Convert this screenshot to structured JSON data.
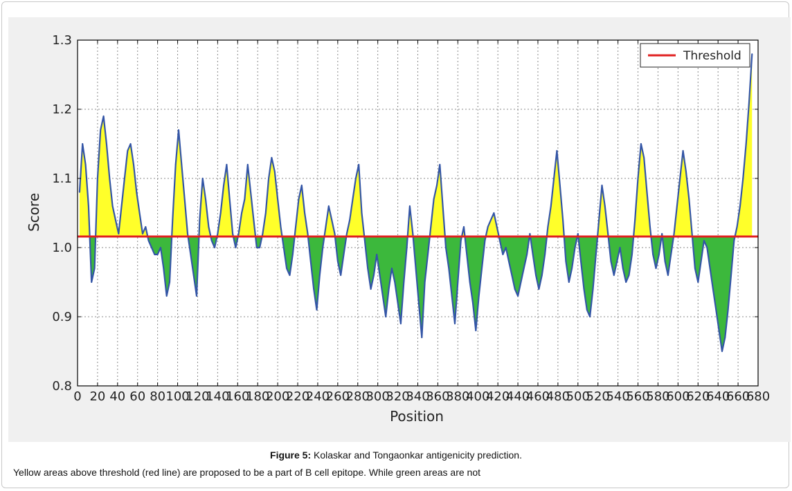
{
  "figure": {
    "label": "Figure 5:",
    "title": "Kolaskar and Tongaonkar antigenicity prediction.",
    "note": "Yellow areas above threshold (red line) are proposed to be a part of B cell epitope. While green areas are not"
  },
  "colors": {
    "above": "#ffff2a",
    "below": "#3cb83c",
    "line": "#3355a6",
    "threshold": "#e02020",
    "grid": "#888888",
    "plot_bg": "#ffffff",
    "panel_bg": "#f0f0f0"
  },
  "chart_data": {
    "type": "area",
    "title": "",
    "xlabel": "Position",
    "ylabel": "Score",
    "xlim": [
      0,
      680
    ],
    "ylim": [
      0.8,
      1.3
    ],
    "xticks": [
      0,
      20,
      40,
      60,
      80,
      100,
      120,
      140,
      160,
      180,
      200,
      220,
      240,
      260,
      280,
      300,
      320,
      340,
      360,
      380,
      400,
      420,
      440,
      460,
      480,
      500,
      520,
      540,
      560,
      580,
      600,
      620,
      640,
      660,
      680
    ],
    "yticks": [
      0.8,
      0.9,
      1.0,
      1.1,
      1.2,
      1.3
    ],
    "ytick_labels": [
      "0.8",
      "0.9",
      "1.0",
      "1.1",
      "1.2",
      "1.3"
    ],
    "grid": true,
    "legend": {
      "position": "top-right",
      "entries": [
        "Threshold"
      ]
    },
    "threshold": {
      "name": "Threshold",
      "value": 1.016
    },
    "series": [
      {
        "x": [
          2,
          5,
          8,
          11,
          14,
          17,
          20,
          23,
          26,
          29,
          32,
          35,
          38,
          41,
          44,
          47,
          50,
          53,
          56,
          59,
          62,
          65,
          68,
          71,
          74,
          77,
          80,
          83,
          86,
          89,
          92,
          95,
          98,
          101,
          104,
          107,
          110,
          113,
          116,
          119,
          122,
          125,
          128,
          131,
          134,
          137,
          140,
          143,
          146,
          149,
          152,
          155,
          158,
          161,
          164,
          167,
          170,
          173,
          176,
          179,
          182,
          185,
          188,
          191,
          194,
          197,
          200,
          203,
          206,
          209,
          212,
          215,
          218,
          221,
          224,
          227,
          230,
          233,
          236,
          239,
          242,
          245,
          248,
          251,
          254,
          257,
          260,
          263,
          266,
          269,
          272,
          275,
          278,
          281,
          284,
          287,
          290,
          293,
          296,
          299,
          302,
          305,
          308,
          311,
          314,
          317,
          320,
          323,
          326,
          329,
          332,
          335,
          338,
          341,
          344,
          347,
          350,
          353,
          356,
          359,
          362,
          365,
          368,
          371,
          374,
          377,
          380,
          383,
          386,
          389,
          392,
          395,
          398,
          401,
          404,
          407,
          410,
          413,
          416,
          419,
          422,
          425,
          428,
          431,
          434,
          437,
          440,
          443,
          446,
          449,
          452,
          455,
          458,
          461,
          464,
          467,
          470,
          473,
          476,
          479,
          482,
          485,
          488,
          491,
          494,
          497,
          500,
          503,
          506,
          509,
          512,
          515,
          518,
          521,
          524,
          527,
          530,
          533,
          536,
          539,
          542,
          545,
          548,
          551,
          554,
          557,
          560,
          563,
          566,
          569,
          572,
          575,
          578,
          581,
          584,
          587,
          590,
          593,
          596,
          599,
          602,
          605,
          608,
          611,
          614,
          617,
          620,
          623,
          626,
          629,
          632,
          635,
          638,
          641,
          644,
          647,
          650,
          653,
          656,
          659,
          662,
          665,
          668,
          671,
          674
        ],
        "y": [
          1.08,
          1.15,
          1.12,
          1.06,
          0.95,
          0.97,
          1.1,
          1.17,
          1.19,
          1.15,
          1.1,
          1.06,
          1.04,
          1.02,
          1.06,
          1.1,
          1.14,
          1.15,
          1.12,
          1.08,
          1.05,
          1.02,
          1.03,
          1.01,
          1.0,
          0.99,
          0.99,
          1.0,
          0.97,
          0.93,
          0.95,
          1.04,
          1.12,
          1.17,
          1.12,
          1.07,
          1.02,
          0.99,
          0.96,
          0.93,
          1.04,
          1.1,
          1.07,
          1.03,
          1.01,
          1.0,
          1.02,
          1.05,
          1.09,
          1.12,
          1.07,
          1.02,
          1.0,
          1.02,
          1.05,
          1.07,
          1.12,
          1.08,
          1.04,
          1.0,
          1.0,
          1.02,
          1.05,
          1.1,
          1.13,
          1.11,
          1.07,
          1.03,
          1.0,
          0.97,
          0.96,
          0.99,
          1.03,
          1.07,
          1.09,
          1.05,
          1.02,
          0.98,
          0.94,
          0.91,
          0.96,
          1.0,
          1.03,
          1.06,
          1.04,
          1.02,
          0.98,
          0.96,
          0.99,
          1.02,
          1.04,
          1.07,
          1.1,
          1.12,
          1.05,
          1.01,
          0.97,
          0.94,
          0.96,
          0.99,
          0.96,
          0.93,
          0.9,
          0.94,
          0.97,
          0.95,
          0.92,
          0.89,
          0.95,
          1.0,
          1.06,
          1.02,
          0.97,
          0.92,
          0.87,
          0.95,
          0.99,
          1.03,
          1.07,
          1.09,
          1.12,
          1.06,
          1.0,
          0.97,
          0.93,
          0.89,
          0.95,
          1.01,
          1.03,
          0.99,
          0.95,
          0.92,
          0.88,
          0.93,
          0.97,
          1.01,
          1.03,
          1.04,
          1.05,
          1.03,
          1.01,
          0.99,
          1.0,
          0.98,
          0.96,
          0.94,
          0.93,
          0.95,
          0.97,
          0.99,
          1.02,
          0.99,
          0.96,
          0.94,
          0.96,
          0.99,
          1.03,
          1.06,
          1.1,
          1.14,
          1.09,
          1.04,
          0.98,
          0.95,
          0.97,
          1.0,
          1.02,
          0.98,
          0.94,
          0.91,
          0.9,
          0.94,
          0.99,
          1.04,
          1.09,
          1.06,
          1.02,
          0.98,
          0.96,
          0.98,
          1.0,
          0.97,
          0.95,
          0.96,
          0.99,
          1.04,
          1.1,
          1.15,
          1.13,
          1.08,
          1.03,
          0.99,
          0.97,
          0.99,
          1.02,
          0.98,
          0.96,
          0.99,
          1.02,
          1.06,
          1.1,
          1.14,
          1.11,
          1.07,
          1.02,
          0.97,
          0.95,
          0.98,
          1.01,
          1.0,
          0.97,
          0.94,
          0.91,
          0.88,
          0.85,
          0.87,
          0.91,
          0.96,
          1.01,
          1.03,
          1.06,
          1.1,
          1.15,
          1.21,
          1.28
        ]
      }
    ]
  }
}
